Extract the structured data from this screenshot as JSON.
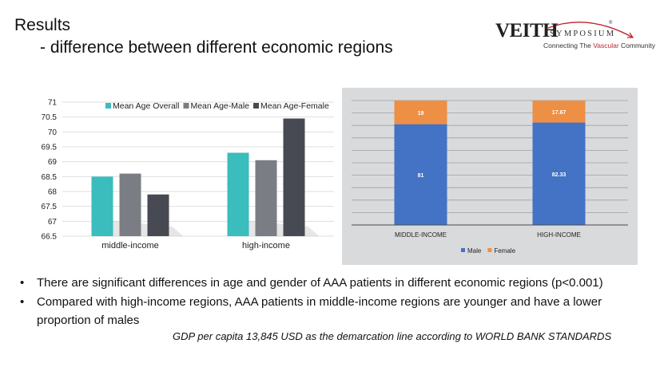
{
  "slide": {
    "title": "Results",
    "subtitle": "- difference between different economic regions"
  },
  "logo": {
    "main": "VEITH",
    "symposium": "SYMPOSIUM",
    "registered": "®",
    "tagline_pre": "Connecting The ",
    "tagline_highlight": "Vascular",
    "tagline_post": " Community",
    "colors": {
      "text": "#222222",
      "accent": "#c0232c"
    }
  },
  "chart_data": [
    {
      "type": "bar",
      "categories": [
        "middle-income",
        "high-income"
      ],
      "series": [
        {
          "name": "Mean Age Overall",
          "values": [
            68.5,
            69.3
          ],
          "color": "#3bbcbd"
        },
        {
          "name": "Mean Age-Male",
          "values": [
            68.6,
            69.05
          ],
          "color": "#7b7d84"
        },
        {
          "name": "Mean Age-Female",
          "values": [
            67.9,
            70.45
          ],
          "color": "#474a52"
        }
      ],
      "ylim": [
        66.5,
        71
      ],
      "yticks": [
        "71",
        "70.5",
        "70",
        "69.5",
        "69",
        "68.5",
        "68",
        "67.5",
        "67",
        "66.5"
      ],
      "legend_position": "top",
      "grid": true
    },
    {
      "type": "bar",
      "stacked": true,
      "percent": true,
      "categories": [
        "MIDDLE-INCOME",
        "HIGH-INCOME"
      ],
      "series": [
        {
          "name": "Male",
          "values": [
            81,
            82.33
          ],
          "labels": [
            "81",
            "82.33"
          ],
          "color": "#4472c4"
        },
        {
          "name": "Female",
          "values": [
            19,
            17.67
          ],
          "labels": [
            "19",
            "17.67"
          ],
          "color": "#ed8f45"
        }
      ],
      "ylim": [
        0,
        100
      ],
      "legend_position": "bottom",
      "grid": true,
      "background": "#d9dadc"
    }
  ],
  "bullets": [
    "There are significant differences in age and gender of AAA patients in different economic regions (p<0.001)",
    "Compared with high-income regions, AAA patients in middle-income regions are younger and have a lower",
    "proportion of males"
  ],
  "bullet_symbol": "•",
  "footnote": "GDP per capita 13,845 USD as the demarcation line according to WORLD BANK STANDARDS"
}
